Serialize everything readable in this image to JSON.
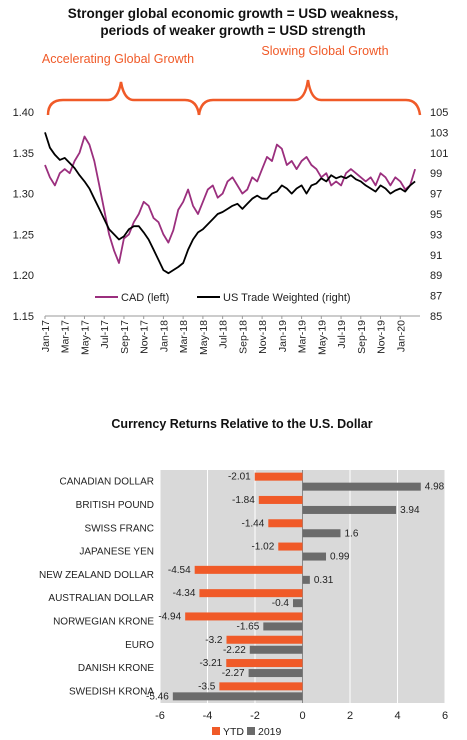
{
  "chart_data": [
    {
      "type": "line",
      "title": "Stronger global economic growth = USD weakness,\nperiods of weaker growth = USD strength",
      "title_lines": [
        "Stronger global economic growth = USD weakness,",
        "periods of weaker growth = USD strength"
      ],
      "annotations": [
        "Accelerating Global Growth",
        "Slowing Global Growth"
      ],
      "accent_color": "#f05a28",
      "x_tick_labels": [
        "Jan-17",
        "Mar-17",
        "May-17",
        "Jul-17",
        "Sep-17",
        "Nov-17",
        "Jan-18",
        "Mar-18",
        "May-18",
        "Jul-18",
        "Sep-18",
        "Nov-18",
        "Jan-19",
        "Mar-19",
        "May-19",
        "Jul-19",
        "Sep-19",
        "Nov-19",
        "Jan-20"
      ],
      "x_range_months": [
        0,
        38
      ],
      "y_left": {
        "ticks": [
          "1.15",
          "1.20",
          "1.25",
          "1.30",
          "1.35",
          "1.40"
        ],
        "min": 1.15,
        "max": 1.4
      },
      "y_right": {
        "ticks": [
          "85",
          "87",
          "89",
          "91",
          "93",
          "95",
          "97",
          "99",
          "101",
          "103",
          "105"
        ],
        "min": 85,
        "max": 105
      },
      "legend": {
        "position": "bottom-inside",
        "items": [
          "CAD (left)",
          "US Trade Weighted (right)"
        ]
      },
      "series": [
        {
          "name": "CAD (left)",
          "axis": "left",
          "color": "#9b2f7e",
          "x": [
            0,
            0.5,
            1,
            1.5,
            2,
            2.5,
            3,
            3.5,
            4,
            4.5,
            5,
            5.5,
            6,
            6.5,
            7,
            7.5,
            8,
            8.5,
            9,
            9.5,
            10,
            10.5,
            11,
            11.5,
            12,
            12.5,
            13,
            13.5,
            14,
            14.5,
            15,
            15.5,
            16,
            16.5,
            17,
            17.5,
            18,
            18.5,
            19,
            19.5,
            20,
            20.5,
            21,
            21.5,
            22,
            22.5,
            23,
            23.5,
            24,
            24.5,
            25,
            25.5,
            26,
            26.5,
            27,
            27.5,
            28,
            28.5,
            29,
            29.5,
            30,
            30.5,
            31,
            31.5,
            32,
            32.5,
            33,
            33.5,
            34,
            34.5,
            35,
            35.5,
            36,
            36.5,
            37,
            37.5
          ],
          "values": [
            1.335,
            1.32,
            1.31,
            1.325,
            1.33,
            1.325,
            1.34,
            1.35,
            1.37,
            1.36,
            1.34,
            1.31,
            1.28,
            1.25,
            1.23,
            1.215,
            1.245,
            1.25,
            1.265,
            1.275,
            1.29,
            1.285,
            1.27,
            1.265,
            1.25,
            1.24,
            1.255,
            1.28,
            1.29,
            1.305,
            1.285,
            1.275,
            1.29,
            1.305,
            1.31,
            1.295,
            1.3,
            1.315,
            1.32,
            1.31,
            1.3,
            1.305,
            1.32,
            1.315,
            1.33,
            1.345,
            1.34,
            1.36,
            1.355,
            1.335,
            1.34,
            1.33,
            1.34,
            1.345,
            1.335,
            1.33,
            1.32,
            1.325,
            1.31,
            1.315,
            1.31,
            1.325,
            1.33,
            1.325,
            1.32,
            1.315,
            1.32,
            1.31,
            1.325,
            1.32,
            1.31,
            1.32,
            1.315,
            1.305,
            1.31,
            1.33
          ]
        },
        {
          "name": "US Trade Weighted (right)",
          "axis": "right",
          "color": "#000000",
          "x": [
            0,
            0.5,
            1,
            1.5,
            2,
            2.5,
            3,
            3.5,
            4,
            4.5,
            5,
            5.5,
            6,
            6.5,
            7,
            7.5,
            8,
            8.5,
            9,
            9.5,
            10,
            10.5,
            11,
            11.5,
            12,
            12.5,
            13,
            13.5,
            14,
            14.5,
            15,
            15.5,
            16,
            16.5,
            17,
            17.5,
            18,
            18.5,
            19,
            19.5,
            20,
            20.5,
            21,
            21.5,
            22,
            22.5,
            23,
            23.5,
            24,
            24.5,
            25,
            25.5,
            26,
            26.5,
            27,
            27.5,
            28,
            28.5,
            29,
            29.5,
            30,
            30.5,
            31,
            31.5,
            32,
            32.5,
            33,
            33.5,
            34,
            34.5,
            35,
            35.5,
            36,
            36.5,
            37,
            37.5
          ],
          "values": [
            103,
            101.5,
            100.8,
            100.3,
            100.5,
            100,
            99.5,
            98.8,
            98.2,
            97.5,
            96.5,
            95.5,
            94.5,
            93.5,
            93,
            92.5,
            92.8,
            93.5,
            93.8,
            93.8,
            93.2,
            92.5,
            91.5,
            90.5,
            89.5,
            89.2,
            89.5,
            89.8,
            90.2,
            91.5,
            92.5,
            93.2,
            93.5,
            94,
            94.5,
            95,
            95.2,
            95.5,
            95.8,
            96,
            95.5,
            96,
            96.5,
            96.8,
            96.5,
            96.5,
            97,
            97.2,
            97.8,
            97.5,
            97,
            97.5,
            97.8,
            97,
            97.8,
            98,
            98.5,
            98.2,
            98.8,
            98.5,
            98.7,
            98.5,
            98.8,
            98.4,
            98.2,
            97.8,
            97.5,
            97.2,
            97.8,
            97.5,
            97,
            97.3,
            97.5,
            97.2,
            97.8,
            98.2
          ]
        }
      ]
    },
    {
      "type": "bar",
      "orientation": "horizontal",
      "title": "Currency Returns Relative to the U.S. Dollar",
      "categories": [
        "CANADIAN DOLLAR",
        "BRITISH POUND",
        "SWISS FRANC",
        "JAPANESE YEN",
        "NEW ZEALAND DOLLAR",
        "AUSTRALIAN DOLLAR",
        "NORWEGIAN KRONE",
        "EURO",
        "DANISH KRONE",
        "SWEDISH KRONA"
      ],
      "series": [
        {
          "name": "YTD",
          "color": "#f05a28",
          "values": [
            -2.01,
            -1.84,
            -1.44,
            -1.02,
            -4.54,
            -4.34,
            -4.94,
            -3.2,
            -3.21,
            -3.5
          ]
        },
        {
          "name": "2019",
          "color": "#6b6b6b",
          "values": [
            4.98,
            3.94,
            1.6,
            0.99,
            0.31,
            -0.4,
            -1.65,
            -2.22,
            -2.27,
            -5.46
          ]
        }
      ],
      "x_ticks": [
        "-6",
        "-4",
        "-2",
        "0",
        "2",
        "4",
        "6"
      ],
      "xlim": [
        -6,
        6
      ],
      "grid": true,
      "plot_background": "#d9d9d9",
      "legend": {
        "position": "bottom",
        "items": [
          "YTD",
          "2019"
        ]
      }
    }
  ]
}
